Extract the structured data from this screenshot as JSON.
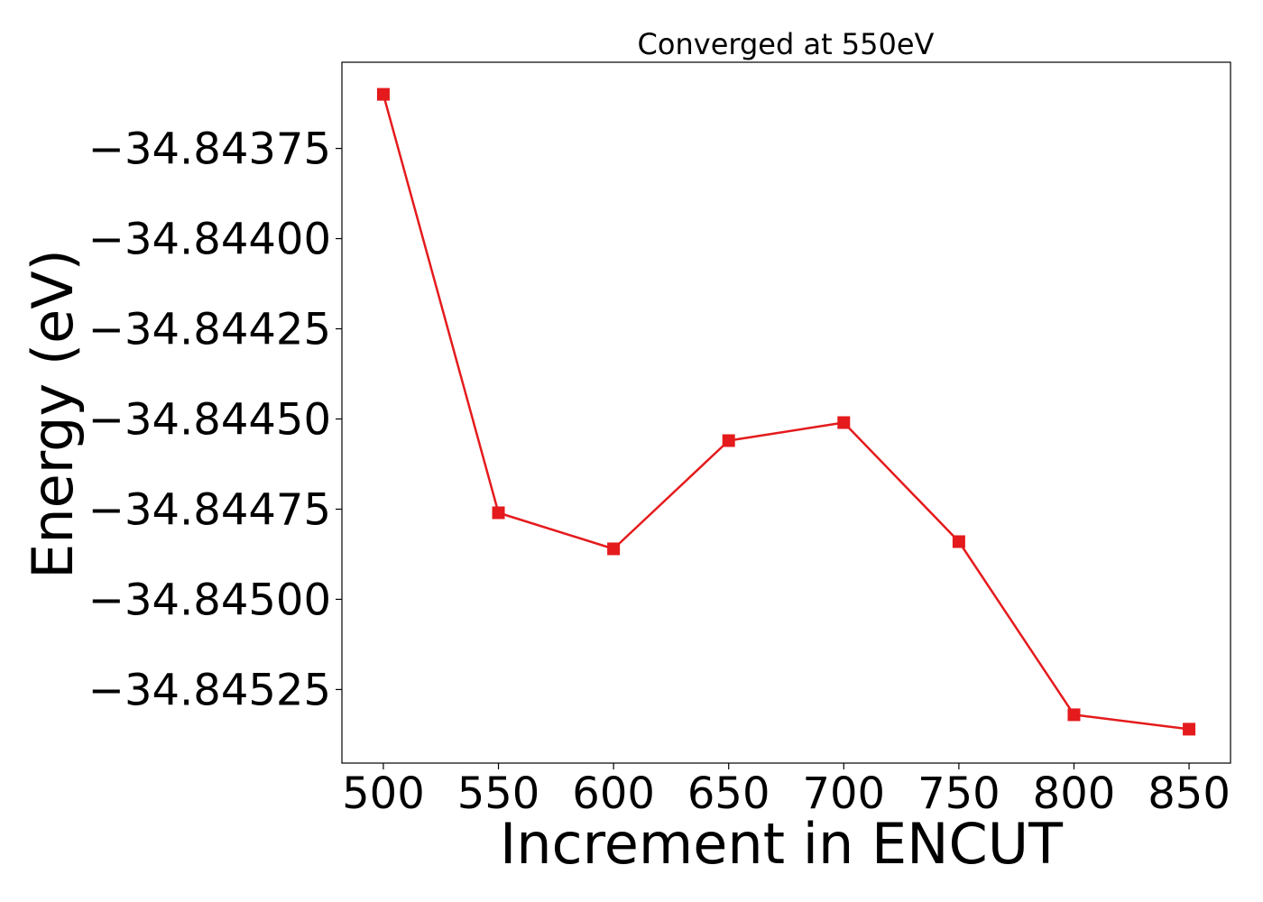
{
  "chart_data": {
    "type": "line",
    "title": "Converged at 550eV",
    "xlabel": "Increment in ENCUT",
    "ylabel": "Energy (eV)",
    "x": [
      500,
      550,
      600,
      650,
      700,
      750,
      800,
      850
    ],
    "series": [
      {
        "values": [
          -34.8436,
          -34.84476,
          -34.84486,
          -34.84456,
          -34.84451,
          -34.84484,
          -34.84532,
          -34.84536
        ],
        "color": "#e41a1c",
        "marker": "square"
      }
    ],
    "xticks": [
      500,
      550,
      600,
      650,
      700,
      750,
      800,
      850
    ],
    "xtick_labels": [
      "500",
      "550",
      "600",
      "650",
      "700",
      "750",
      "800",
      "850"
    ],
    "yticks": [
      -34.84375,
      -34.844,
      -34.84425,
      -34.8445,
      -34.84475,
      -34.845,
      -34.84525
    ],
    "ytick_labels": [
      "−34.84375",
      "−34.84400",
      "−34.84425",
      "−34.84450",
      "−34.84475",
      "−34.84500",
      "−34.84525"
    ],
    "xlim": [
      482,
      868
    ],
    "ylim": [
      -34.845454,
      -34.843511
    ],
    "grid": false,
    "legend": "none"
  }
}
